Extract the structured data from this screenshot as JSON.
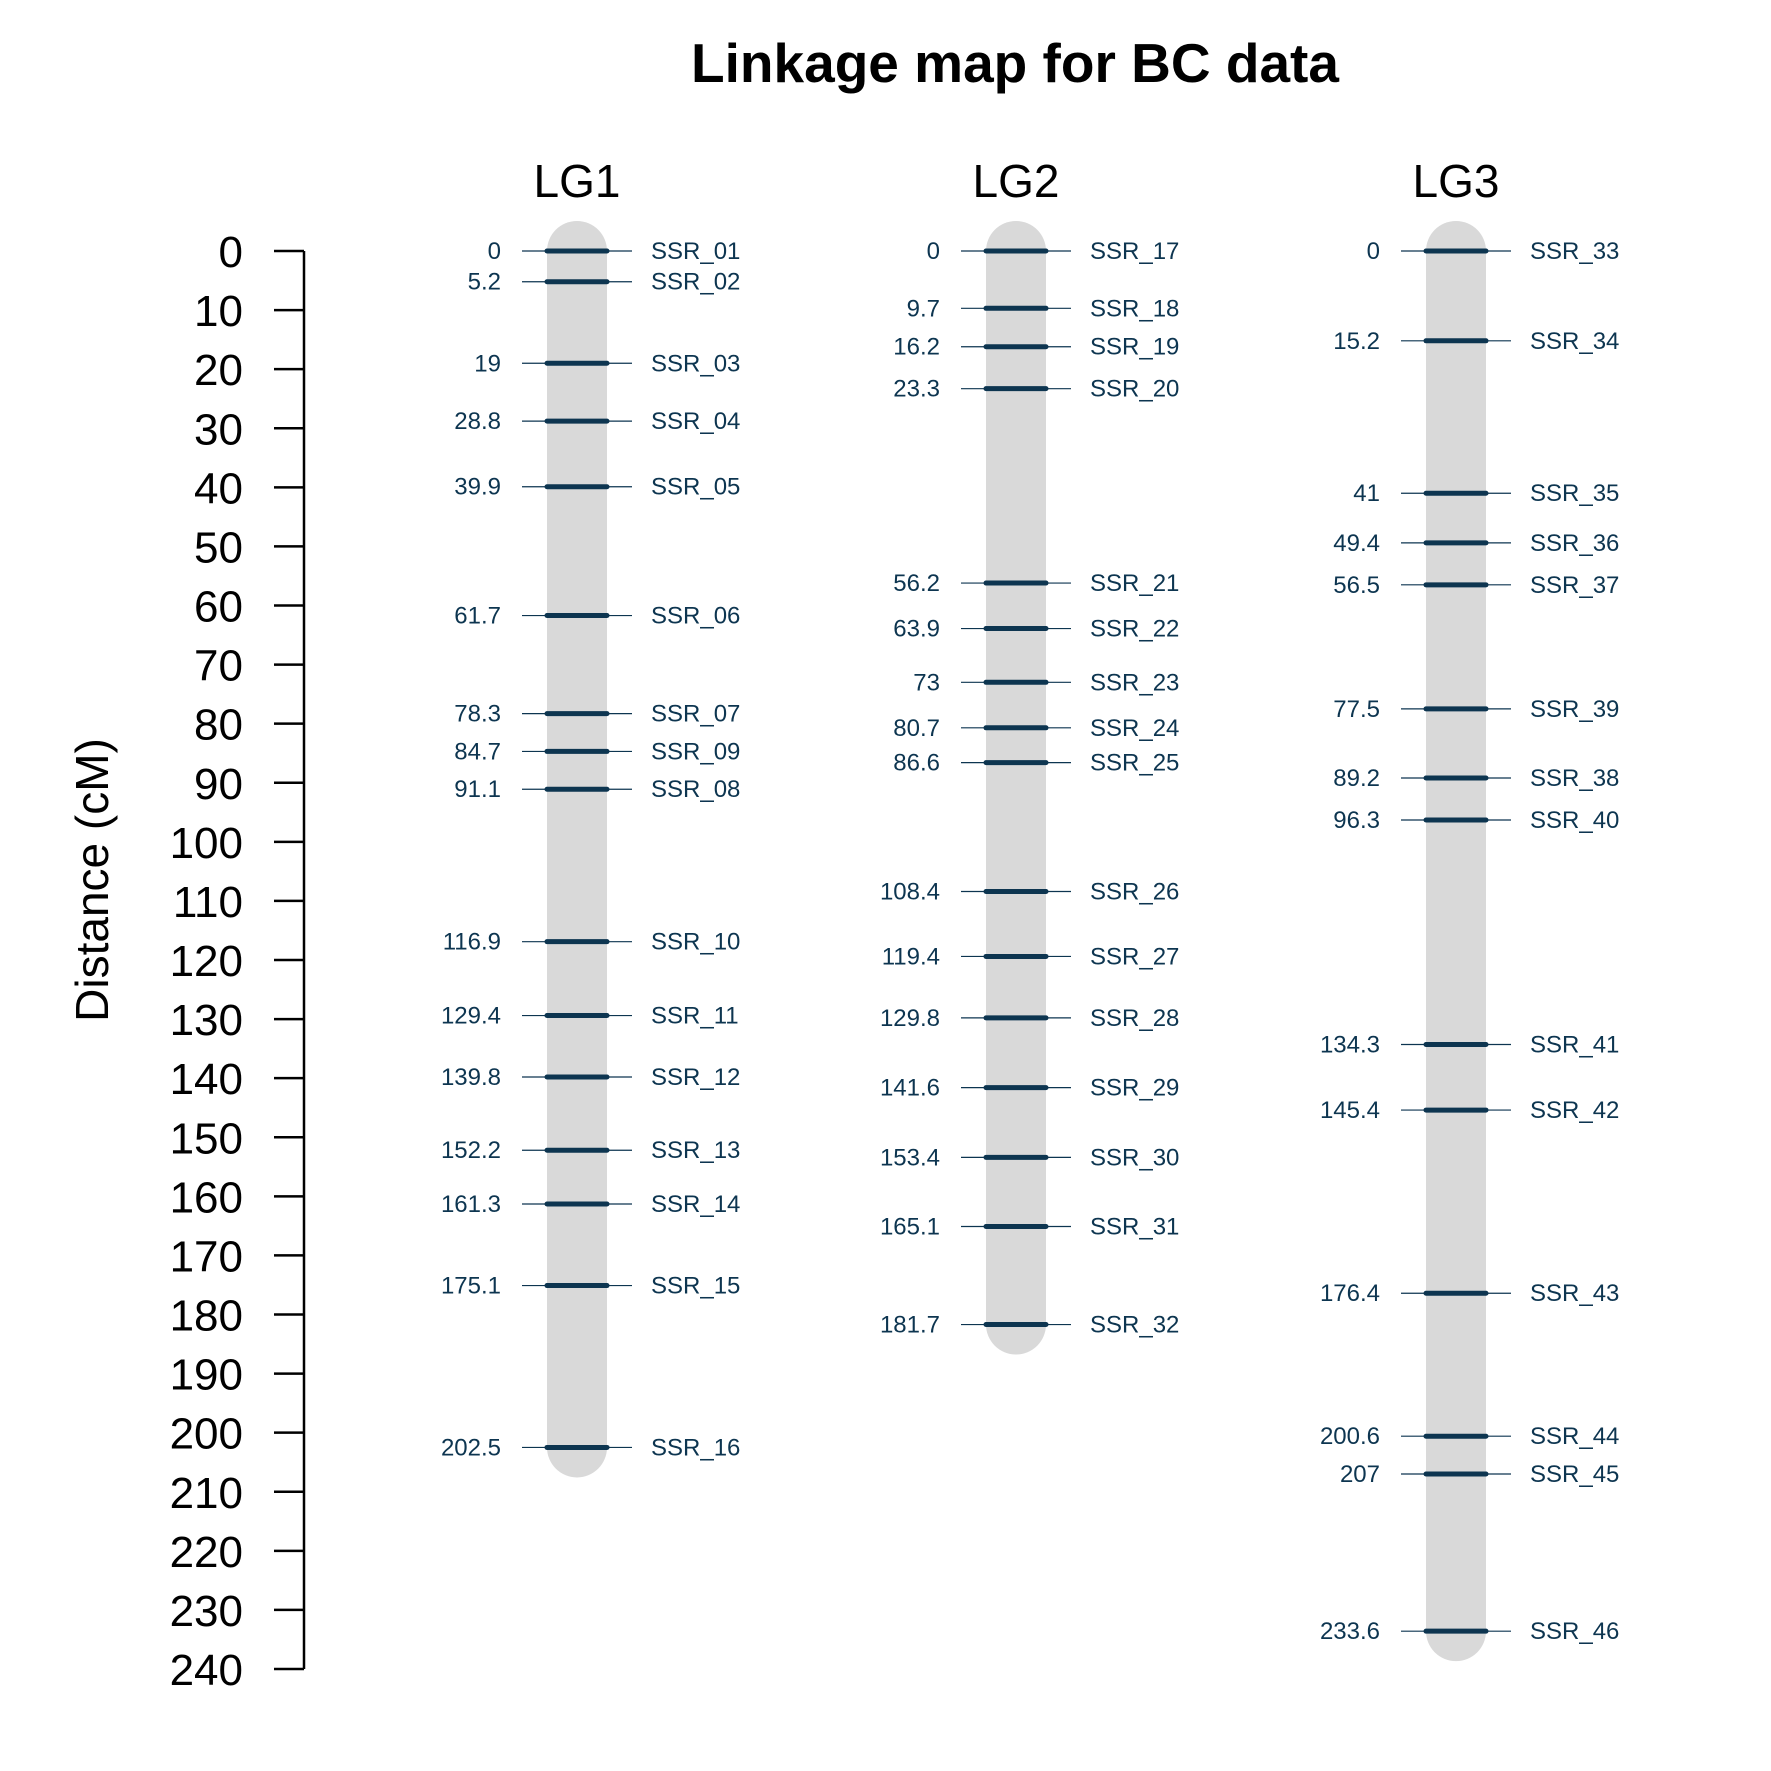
{
  "chart_data": {
    "type": "linkage-map",
    "title": "Linkage map for BC data",
    "ylabel": "Distance (cM)",
    "ylim": [
      0,
      240
    ],
    "y_ticks": [
      0,
      10,
      20,
      30,
      40,
      50,
      60,
      70,
      80,
      90,
      100,
      110,
      120,
      130,
      140,
      150,
      160,
      170,
      180,
      190,
      200,
      210,
      220,
      230,
      240
    ],
    "y_reversed": true,
    "colors": {
      "chromosome": "#d9d9d9",
      "marker": "#0d3550",
      "text": "#0d3550"
    },
    "groups": [
      {
        "name": "LG1",
        "positions": [
          0,
          5.2,
          19,
          28.8,
          39.9,
          61.7,
          78.3,
          84.7,
          91.1,
          116.9,
          129.4,
          139.8,
          152.2,
          161.3,
          175.1,
          202.5
        ],
        "position_labels": [
          "0",
          "5.2",
          "19",
          "28.8",
          "39.9",
          "61.7",
          "78.3",
          "84.7",
          "91.1",
          "116.9",
          "129.4",
          "139.8",
          "152.2",
          "161.3",
          "175.1",
          "202.5"
        ],
        "markers": [
          "SSR_01",
          "SSR_02",
          "SSR_03",
          "SSR_04",
          "SSR_05",
          "SSR_06",
          "SSR_07",
          "SSR_09",
          "SSR_08",
          "SSR_10",
          "SSR_11",
          "SSR_12",
          "SSR_13",
          "SSR_14",
          "SSR_15",
          "SSR_16"
        ]
      },
      {
        "name": "LG2",
        "positions": [
          0,
          9.7,
          16.2,
          23.3,
          56.2,
          63.9,
          73,
          80.7,
          86.6,
          108.4,
          119.4,
          129.8,
          141.6,
          153.4,
          165.1,
          181.7
        ],
        "position_labels": [
          "0",
          "9.7",
          "16.2",
          "23.3",
          "56.2",
          "63.9",
          "73",
          "80.7",
          "86.6",
          "108.4",
          "119.4",
          "129.8",
          "141.6",
          "153.4",
          "165.1",
          "181.7"
        ],
        "markers": [
          "SSR_17",
          "SSR_18",
          "SSR_19",
          "SSR_20",
          "SSR_21",
          "SSR_22",
          "SSR_23",
          "SSR_24",
          "SSR_25",
          "SSR_26",
          "SSR_27",
          "SSR_28",
          "SSR_29",
          "SSR_30",
          "SSR_31",
          "SSR_32"
        ]
      },
      {
        "name": "LG3",
        "positions": [
          0,
          15.2,
          41,
          49.4,
          56.5,
          77.5,
          89.2,
          96.3,
          134.3,
          145.4,
          176.4,
          200.6,
          207,
          233.6
        ],
        "position_labels": [
          "0",
          "15.2",
          "41",
          "49.4",
          "56.5",
          "77.5",
          "89.2",
          "96.3",
          "134.3",
          "145.4",
          "176.4",
          "200.6",
          "207",
          "233.6"
        ],
        "markers": [
          "SSR_33",
          "SSR_34",
          "SSR_35",
          "SSR_36",
          "SSR_37",
          "SSR_39",
          "SSR_38",
          "SSR_40",
          "SSR_41",
          "SSR_42",
          "SSR_43",
          "SSR_44",
          "SSR_45",
          "SSR_46"
        ]
      }
    ]
  }
}
